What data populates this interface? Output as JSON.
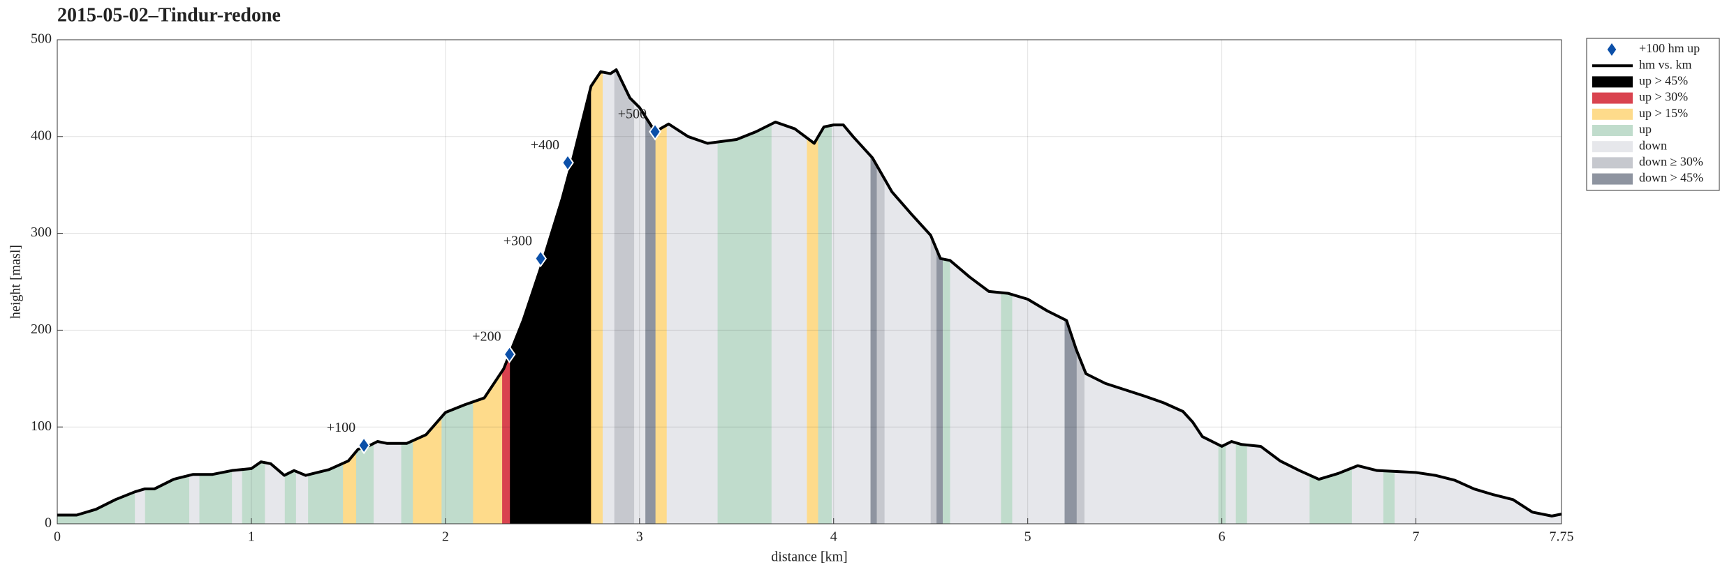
{
  "chart_data": {
    "type": "profile",
    "title": "2015-05-02–Tindur-redone",
    "xlabel": "distance [km]",
    "ylabel": "height [masl]",
    "xlim": [
      0,
      7.75
    ],
    "ylim": [
      0,
      500
    ],
    "xticks": [
      0,
      1,
      2,
      3,
      4,
      5,
      6,
      7,
      7.75
    ],
    "yticks": [
      0,
      100,
      200,
      300,
      400,
      500
    ],
    "grid": true,
    "legend": "outside-upper-right",
    "markers": {
      "name": "+100 hm up",
      "color": "#0b4fa8",
      "x": [
        1.58,
        2.33,
        2.49,
        2.63,
        3.08
      ],
      "values": [
        81,
        175,
        274,
        373,
        405
      ],
      "labels": [
        "+100",
        "+200",
        "+300",
        "+400",
        "+500"
      ]
    },
    "line": {
      "name": "hm vs. km",
      "color": "#000000",
      "x": [
        0,
        0.1,
        0.2,
        0.3,
        0.4,
        0.45,
        0.5,
        0.6,
        0.7,
        0.8,
        0.9,
        1.0,
        1.05,
        1.1,
        1.17,
        1.22,
        1.28,
        1.4,
        1.5,
        1.55,
        1.6,
        1.65,
        1.7,
        1.8,
        1.9,
        2.0,
        2.1,
        2.2,
        2.3,
        2.33,
        2.4,
        2.5,
        2.6,
        2.65,
        2.75,
        2.8,
        2.85,
        2.88,
        2.95,
        3.0,
        3.08,
        3.15,
        3.25,
        3.35,
        3.5,
        3.6,
        3.7,
        3.8,
        3.9,
        3.95,
        4.0,
        4.05,
        4.1,
        4.2,
        4.3,
        4.4,
        4.5,
        4.55,
        4.6,
        4.7,
        4.8,
        4.9,
        5.0,
        5.1,
        5.2,
        5.25,
        5.3,
        5.4,
        5.6,
        5.7,
        5.8,
        5.85,
        5.9,
        6.0,
        6.05,
        6.1,
        6.2,
        6.3,
        6.4,
        6.5,
        6.6,
        6.65,
        6.7,
        6.8,
        6.9,
        7.0,
        7.1,
        7.2,
        7.3,
        7.4,
        7.5,
        7.6,
        7.7,
        7.75
      ],
      "values": [
        9,
        9,
        15,
        25,
        33,
        36,
        36,
        46,
        51,
        51,
        55,
        57,
        64,
        62,
        50,
        55,
        50,
        56,
        65,
        77,
        80,
        85,
        83,
        83,
        92,
        115,
        123,
        130,
        160,
        175,
        210,
        270,
        335,
        372,
        452,
        467,
        465,
        469,
        440,
        430,
        405,
        413,
        400,
        393,
        397,
        405,
        415,
        408,
        393,
        410,
        412,
        412,
        400,
        378,
        343,
        320,
        298,
        274,
        272,
        255,
        240,
        238,
        232,
        220,
        210,
        180,
        155,
        145,
        132,
        125,
        116,
        105,
        90,
        80,
        85,
        82,
        80,
        65,
        55,
        46,
        52,
        56,
        60,
        55,
        54,
        53,
        50,
        45,
        36,
        30,
        25,
        12,
        8,
        10
      ]
    },
    "series": [
      {
        "name": "up > 45%",
        "color": "#000000",
        "ranges": [
          [
            2.33,
            2.75
          ]
        ]
      },
      {
        "name": "up > 30%",
        "color": "#d9434f",
        "ranges": [
          [
            2.29,
            2.33
          ]
        ]
      },
      {
        "name": "up > 15%",
        "color": "#fedb8b",
        "ranges": [
          [
            1.47,
            1.54
          ],
          [
            1.83,
            1.98
          ],
          [
            2.14,
            2.29
          ],
          [
            2.75,
            2.81
          ],
          [
            3.08,
            3.14
          ],
          [
            3.86,
            3.92
          ]
        ]
      },
      {
        "name": "up",
        "color": "#c0dccc",
        "ranges": [
          [
            0,
            0.4
          ],
          [
            0.45,
            0.68
          ],
          [
            0.73,
            0.9
          ],
          [
            0.95,
            1.07
          ],
          [
            1.17,
            1.23
          ],
          [
            1.29,
            1.47
          ],
          [
            1.54,
            1.63
          ],
          [
            1.77,
            1.83
          ],
          [
            1.98,
            2.14
          ],
          [
            3.4,
            3.68
          ],
          [
            3.92,
            3.99
          ],
          [
            4.56,
            4.6
          ],
          [
            4.86,
            4.92
          ],
          [
            5.98,
            6.02
          ],
          [
            6.07,
            6.13
          ],
          [
            6.45,
            6.67
          ],
          [
            6.83,
            6.89
          ]
        ]
      },
      {
        "name": "down",
        "color": "#e6e7eb",
        "ranges": [
          [
            0.4,
            0.45
          ],
          [
            0.68,
            0.73
          ],
          [
            0.9,
            0.95
          ],
          [
            1.07,
            1.17
          ],
          [
            1.23,
            1.29
          ],
          [
            1.63,
            1.77
          ],
          [
            2.81,
            2.87
          ],
          [
            2.97,
            3.03
          ],
          [
            3.14,
            3.4
          ],
          [
            3.68,
            3.86
          ],
          [
            3.99,
            4.19
          ],
          [
            4.26,
            4.5
          ],
          [
            4.6,
            4.86
          ],
          [
            4.92,
            5.19
          ],
          [
            5.29,
            5.98
          ],
          [
            6.02,
            6.07
          ],
          [
            6.13,
            6.45
          ],
          [
            6.67,
            6.83
          ],
          [
            6.89,
            7.75
          ]
        ]
      },
      {
        "name": "down ≥ 30%",
        "color": "#c6c8ce",
        "ranges": [
          [
            2.87,
            2.97
          ],
          [
            4.22,
            4.26
          ],
          [
            4.5,
            4.53
          ],
          [
            5.25,
            5.29
          ]
        ]
      },
      {
        "name": "down > 45%",
        "color": "#8e94a0",
        "ranges": [
          [
            3.03,
            3.08
          ],
          [
            4.19,
            4.22
          ],
          [
            4.53,
            4.56
          ],
          [
            5.19,
            5.25
          ]
        ]
      }
    ]
  }
}
